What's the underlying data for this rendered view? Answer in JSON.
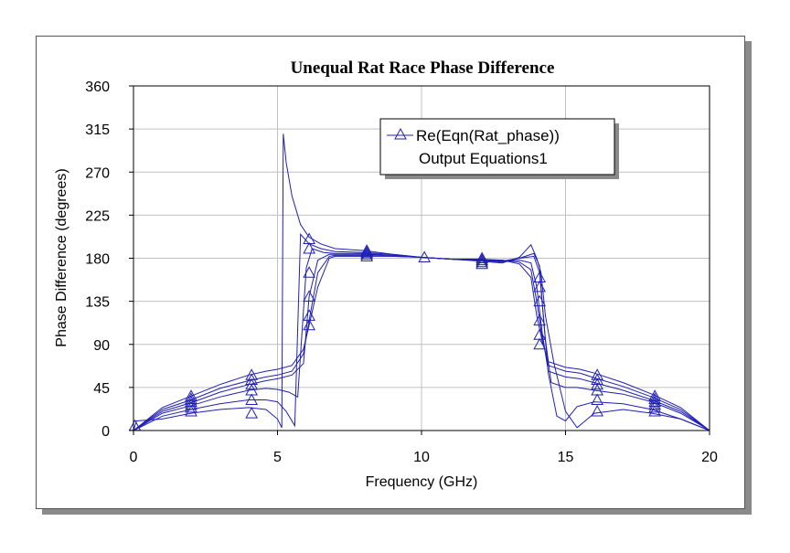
{
  "chart_data": {
    "type": "line",
    "title": "Unequal Rat Race Phase Difference",
    "xlabel": "Frequency (GHz)",
    "ylabel": "Phase Difference (degrees)",
    "xlim": [
      0,
      20
    ],
    "ylim": [
      0,
      360
    ],
    "xticks": [
      0,
      5,
      10,
      15,
      20
    ],
    "yticks": [
      0,
      45,
      90,
      135,
      180,
      225,
      270,
      315,
      360
    ],
    "grid": true,
    "legend_position": "top-right",
    "colors": {
      "line": "#1f1fb4",
      "grid": "#c0c0c0",
      "axis": "#000000"
    },
    "legend": {
      "entries": [
        "Re(Eqn(Rat_phase))",
        "Output Equations1"
      ],
      "marker": "triangle"
    },
    "series": [
      {
        "x": [
          0,
          0.1,
          1,
          2,
          3,
          4,
          4.6,
          5.0,
          5.15,
          5.2,
          5.3,
          5.5,
          5.8,
          6.1,
          6.5,
          7,
          8,
          9,
          10,
          11,
          12,
          12.8,
          13.4,
          13.8,
          14.0,
          14.15,
          14.3,
          14.6,
          15.0,
          15.4,
          16,
          17,
          18,
          19,
          20
        ],
        "y": [
          0,
          10,
          12,
          18,
          22,
          24,
          22,
          12,
          3,
          310,
          280,
          245,
          215,
          202,
          195,
          190,
          188,
          184,
          181,
          179,
          177,
          175,
          181,
          194,
          180,
          165,
          120,
          70,
          20,
          3,
          18,
          22,
          18,
          12,
          0
        ]
      },
      {
        "x": [
          0,
          1,
          2,
          3,
          4,
          4.6,
          5.0,
          5.3,
          5.6,
          5.8,
          6.1,
          6.5,
          7,
          8,
          9,
          10,
          11,
          12,
          12.8,
          13.4,
          13.9,
          14.1,
          14.2,
          14.4,
          14.7,
          15.0,
          15.4,
          16,
          17,
          18,
          19,
          20
        ],
        "y": [
          0,
          15,
          22,
          28,
          32,
          32,
          30,
          20,
          5,
          205,
          195,
          190,
          187,
          186,
          184,
          181,
          179,
          178,
          176,
          180,
          185,
          172,
          130,
          60,
          15,
          10,
          25,
          30,
          28,
          22,
          12,
          0
        ]
      },
      {
        "x": [
          0,
          1,
          2,
          3,
          4,
          4.6,
          5.0,
          5.4,
          5.7,
          6.0,
          6.2,
          6.6,
          7,
          8,
          9,
          10,
          11,
          12,
          12.8,
          13.4,
          13.9,
          14.1,
          14.3,
          14.5,
          15.0,
          15.4,
          16,
          17,
          18,
          19,
          20
        ],
        "y": [
          0,
          18,
          26,
          35,
          42,
          44,
          43,
          40,
          35,
          170,
          190,
          186,
          185,
          185,
          183,
          181,
          179,
          178,
          177,
          180,
          182,
          165,
          95,
          50,
          45,
          45,
          42,
          38,
          30,
          18,
          0
        ]
      },
      {
        "x": [
          0,
          1,
          2,
          3,
          4,
          4.6,
          5.0,
          5.5,
          5.9,
          6.1,
          6.4,
          6.8,
          7,
          8,
          9,
          10,
          11,
          12,
          12.8,
          13.4,
          13.8,
          14.0,
          14.2,
          14.4,
          15.0,
          15.5,
          16,
          17,
          18,
          19,
          20
        ],
        "y": [
          0,
          20,
          29,
          40,
          48,
          52,
          54,
          58,
          70,
          140,
          178,
          184,
          184,
          184,
          183,
          181,
          179,
          178,
          177,
          178,
          175,
          150,
          100,
          62,
          56,
          54,
          50,
          42,
          32,
          20,
          0
        ]
      },
      {
        "x": [
          0,
          1,
          2,
          3,
          4,
          4.6,
          5.0,
          5.5,
          5.9,
          6.1,
          6.4,
          6.8,
          7,
          8,
          9,
          10,
          11,
          12,
          12.8,
          13.4,
          13.8,
          14.0,
          14.2,
          14.4,
          15.0,
          15.5,
          16,
          17,
          18,
          19,
          20
        ],
        "y": [
          0,
          22,
          32,
          44,
          52,
          56,
          58,
          62,
          80,
          115,
          165,
          182,
          183,
          183,
          182,
          181,
          179,
          178,
          178,
          176,
          168,
          135,
          95,
          68,
          62,
          60,
          55,
          46,
          35,
          22,
          0
        ]
      },
      {
        "x": [
          0,
          1,
          2,
          3,
          4,
          4.6,
          5.0,
          5.5,
          5.9,
          6.1,
          6.4,
          6.8,
          7,
          8,
          9,
          10,
          11,
          12,
          12.8,
          13.4,
          13.8,
          14.0,
          14.2,
          14.4,
          15.0,
          15.5,
          16,
          17,
          18,
          19,
          20
        ],
        "y": [
          0,
          24,
          36,
          48,
          58,
          62,
          64,
          68,
          85,
          110,
          150,
          180,
          182,
          182,
          182,
          181,
          179,
          179,
          178,
          174,
          160,
          120,
          92,
          72,
          66,
          64,
          60,
          50,
          38,
          24,
          0
        ]
      }
    ],
    "markers": [
      {
        "x": 2,
        "y": 20
      },
      {
        "x": 2,
        "y": 24
      },
      {
        "x": 2,
        "y": 27
      },
      {
        "x": 2,
        "y": 30
      },
      {
        "x": 2,
        "y": 33
      },
      {
        "x": 2,
        "y": 36
      },
      {
        "x": 4.1,
        "y": 18
      },
      {
        "x": 4.1,
        "y": 32
      },
      {
        "x": 4.1,
        "y": 42
      },
      {
        "x": 4.1,
        "y": 48
      },
      {
        "x": 4.1,
        "y": 53
      },
      {
        "x": 4.1,
        "y": 58
      },
      {
        "x": 6.1,
        "y": 110
      },
      {
        "x": 6.1,
        "y": 120
      },
      {
        "x": 6.1,
        "y": 140
      },
      {
        "x": 6.1,
        "y": 165
      },
      {
        "x": 6.1,
        "y": 190
      },
      {
        "x": 6.1,
        "y": 200
      },
      {
        "x": 8.1,
        "y": 182
      },
      {
        "x": 8.1,
        "y": 184
      },
      {
        "x": 8.1,
        "y": 186
      },
      {
        "x": 8.1,
        "y": 188
      },
      {
        "x": 10.1,
        "y": 181
      },
      {
        "x": 12.1,
        "y": 174
      },
      {
        "x": 12.1,
        "y": 176
      },
      {
        "x": 12.1,
        "y": 178
      },
      {
        "x": 12.1,
        "y": 180
      },
      {
        "x": 14.1,
        "y": 90
      },
      {
        "x": 14.1,
        "y": 100
      },
      {
        "x": 14.1,
        "y": 115
      },
      {
        "x": 14.1,
        "y": 135
      },
      {
        "x": 14.1,
        "y": 150
      },
      {
        "x": 14.1,
        "y": 160
      },
      {
        "x": 16.1,
        "y": 20
      },
      {
        "x": 16.1,
        "y": 32
      },
      {
        "x": 16.1,
        "y": 42
      },
      {
        "x": 16.1,
        "y": 48
      },
      {
        "x": 16.1,
        "y": 53
      },
      {
        "x": 16.1,
        "y": 58
      },
      {
        "x": 18.1,
        "y": 20
      },
      {
        "x": 18.1,
        "y": 24
      },
      {
        "x": 18.1,
        "y": 27
      },
      {
        "x": 18.1,
        "y": 30
      },
      {
        "x": 18.1,
        "y": 33
      },
      {
        "x": 18.1,
        "y": 36
      },
      {
        "x": 0.05,
        "y": 5
      }
    ]
  }
}
